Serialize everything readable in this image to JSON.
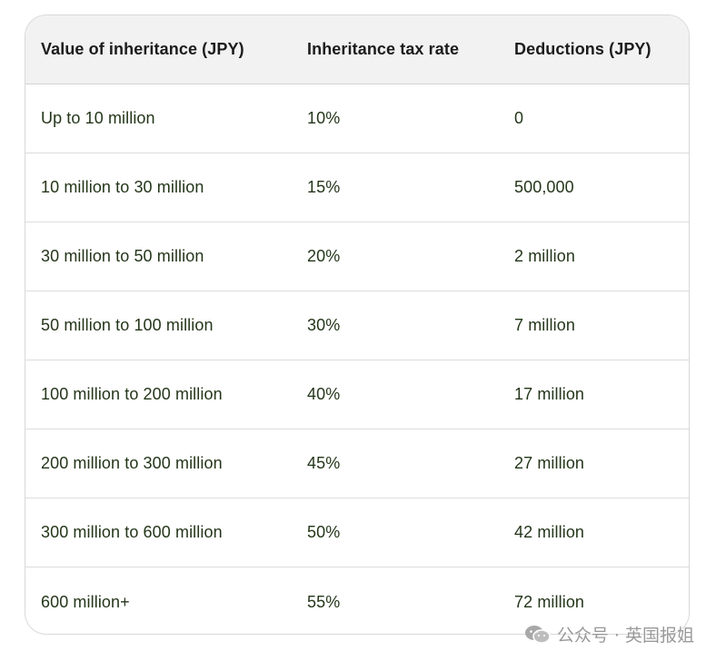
{
  "table": {
    "headers": [
      "Value of inheritance (JPY)",
      "Inheritance tax rate",
      "Deductions (JPY)"
    ],
    "rows": [
      [
        "Up to 10 million",
        "10%",
        "0"
      ],
      [
        "10 million to 30 million",
        "15%",
        "500,000"
      ],
      [
        "30 million to 50 million",
        "20%",
        "2 million"
      ],
      [
        "50 million to 100 million",
        "30%",
        "7 million"
      ],
      [
        "100 million to 200 million",
        "40%",
        "17 million"
      ],
      [
        "200 million to 300 million",
        "45%",
        "27 million"
      ],
      [
        "300 million to 600 million",
        "50%",
        "42 million"
      ],
      [
        "600 million+",
        "55%",
        "72 million"
      ]
    ]
  },
  "watermark": {
    "icon": "wechat-icon",
    "text": "公众号 · 英国报姐",
    "color": "#9a9a9a"
  },
  "colors": {
    "header_bg": "#f1f2f1",
    "text": "#24361a",
    "border": "#d9d9d9"
  }
}
